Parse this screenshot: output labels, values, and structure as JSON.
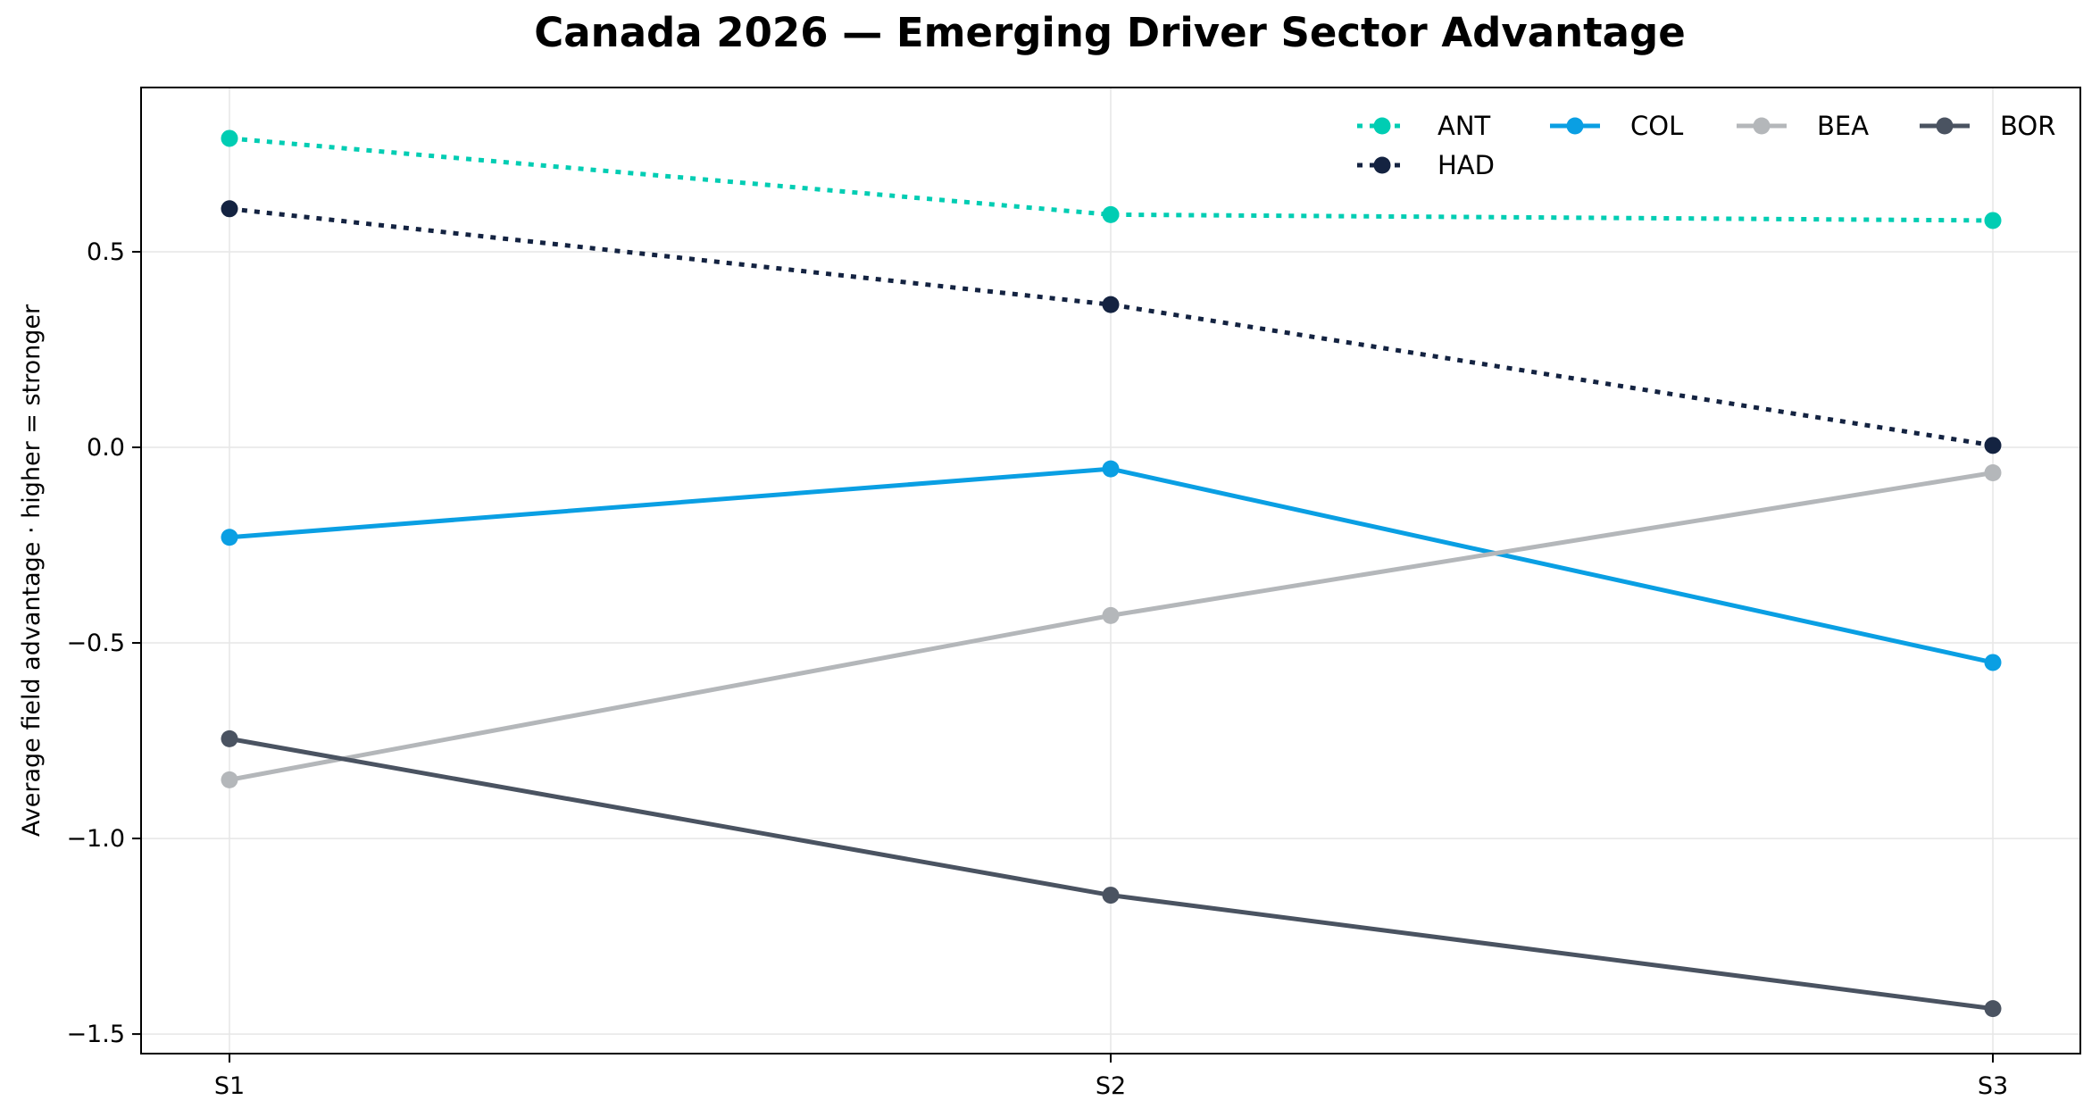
{
  "chart_data": {
    "type": "line",
    "title": "Canada 2026 — Emerging Driver Sector Advantage",
    "xlabel": "",
    "ylabel": "Average field advantage · higher = stronger",
    "categories": [
      "S1",
      "S2",
      "S3"
    ],
    "ylim": [
      -1.55,
      0.92
    ],
    "yticks": [
      -1.5,
      -1.0,
      -0.5,
      0.0,
      0.5
    ],
    "ytick_labels": [
      "−1.5",
      "−1.0",
      "−0.5",
      "0.0",
      "0.5"
    ],
    "grid": true,
    "legend_position": "top-right",
    "series": [
      {
        "name": "ANT",
        "values": [
          0.79,
          0.595,
          0.58
        ],
        "color": "#00cdb3",
        "style": "dotted"
      },
      {
        "name": "COL",
        "values": [
          -0.23,
          -0.055,
          -0.55
        ],
        "color": "#0a9fe3",
        "style": "solid"
      },
      {
        "name": "BEA",
        "values": [
          -0.85,
          -0.43,
          -0.065
        ],
        "color": "#b4b7ba",
        "style": "solid"
      },
      {
        "name": "BOR",
        "values": [
          -0.745,
          -1.145,
          -1.435
        ],
        "color": "#4a5361",
        "style": "solid"
      },
      {
        "name": "HAD",
        "values": [
          0.61,
          0.365,
          0.005
        ],
        "color": "#142341",
        "style": "dotted"
      }
    ]
  }
}
